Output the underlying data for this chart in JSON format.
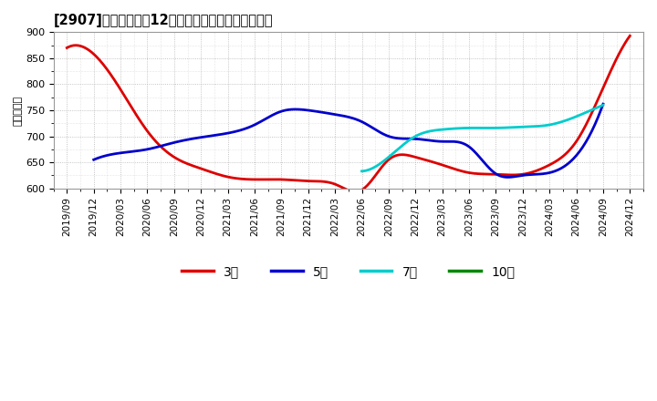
{
  "title": "[2907]　当期純利益12か月移動合計の平均値の推移",
  "ylabel": "（百万円）",
  "background_color": "#ffffff",
  "plot_background_color": "#ffffff",
  "grid_color": "#aaaaaa",
  "ylim": [
    600,
    900
  ],
  "yticks": [
    600,
    650,
    700,
    750,
    800,
    850,
    900
  ],
  "series": {
    "3年": {
      "color": "#dd0000",
      "data": [
        [
          "2019/09",
          870
        ],
        [
          "2019/12",
          858
        ],
        [
          "2020/03",
          790
        ],
        [
          "2020/06",
          710
        ],
        [
          "2020/09",
          660
        ],
        [
          "2020/12",
          638
        ],
        [
          "2021/03",
          622
        ],
        [
          "2021/06",
          617
        ],
        [
          "2021/09",
          617
        ],
        [
          "2021/12",
          614
        ],
        [
          "2022/03",
          608
        ],
        [
          "2022/06",
          597
        ],
        [
          "2022/09",
          655
        ],
        [
          "2022/12",
          660
        ],
        [
          "2023/03",
          645
        ],
        [
          "2023/06",
          630
        ],
        [
          "2023/09",
          627
        ],
        [
          "2023/12",
          627
        ],
        [
          "2024/03",
          645
        ],
        [
          "2024/06",
          690
        ],
        [
          "2024/09",
          793
        ],
        [
          "2024/12",
          893
        ]
      ]
    },
    "5年": {
      "color": "#0000cc",
      "data": [
        [
          "2019/12",
          655
        ],
        [
          "2020/03",
          668
        ],
        [
          "2020/06",
          675
        ],
        [
          "2020/09",
          688
        ],
        [
          "2020/12",
          698
        ],
        [
          "2021/03",
          706
        ],
        [
          "2021/06",
          722
        ],
        [
          "2021/09",
          748
        ],
        [
          "2021/12",
          750
        ],
        [
          "2022/03",
          742
        ],
        [
          "2022/06",
          728
        ],
        [
          "2022/09",
          700
        ],
        [
          "2022/12",
          695
        ],
        [
          "2023/03",
          690
        ],
        [
          "2023/06",
          680
        ],
        [
          "2023/09",
          628
        ],
        [
          "2023/12",
          625
        ],
        [
          "2024/03",
          630
        ],
        [
          "2024/06",
          663
        ],
        [
          "2024/09",
          762
        ]
      ]
    },
    "7年": {
      "color": "#00cccc",
      "data": [
        [
          "2022/06",
          633
        ],
        [
          "2022/09",
          660
        ],
        [
          "2022/12",
          700
        ],
        [
          "2023/03",
          713
        ],
        [
          "2023/06",
          716
        ],
        [
          "2023/09",
          716
        ],
        [
          "2023/12",
          718
        ],
        [
          "2024/03",
          722
        ],
        [
          "2024/06",
          738
        ],
        [
          "2024/09",
          760
        ]
      ]
    },
    "10年": {
      "color": "#008800",
      "data": []
    }
  },
  "xtick_labels": [
    "2019/09",
    "2019/12",
    "2020/03",
    "2020/06",
    "2020/09",
    "2020/12",
    "2021/03",
    "2021/06",
    "2021/09",
    "2021/12",
    "2022/03",
    "2022/06",
    "2022/09",
    "2022/12",
    "2023/03",
    "2023/06",
    "2023/09",
    "2023/12",
    "2024/03",
    "2024/06",
    "2024/09",
    "2024/12"
  ],
  "legend": {
    "entries": [
      "3年",
      "5年",
      "7年",
      "10年"
    ],
    "colors": [
      "#dd0000",
      "#0000cc",
      "#00cccc",
      "#008800"
    ]
  }
}
